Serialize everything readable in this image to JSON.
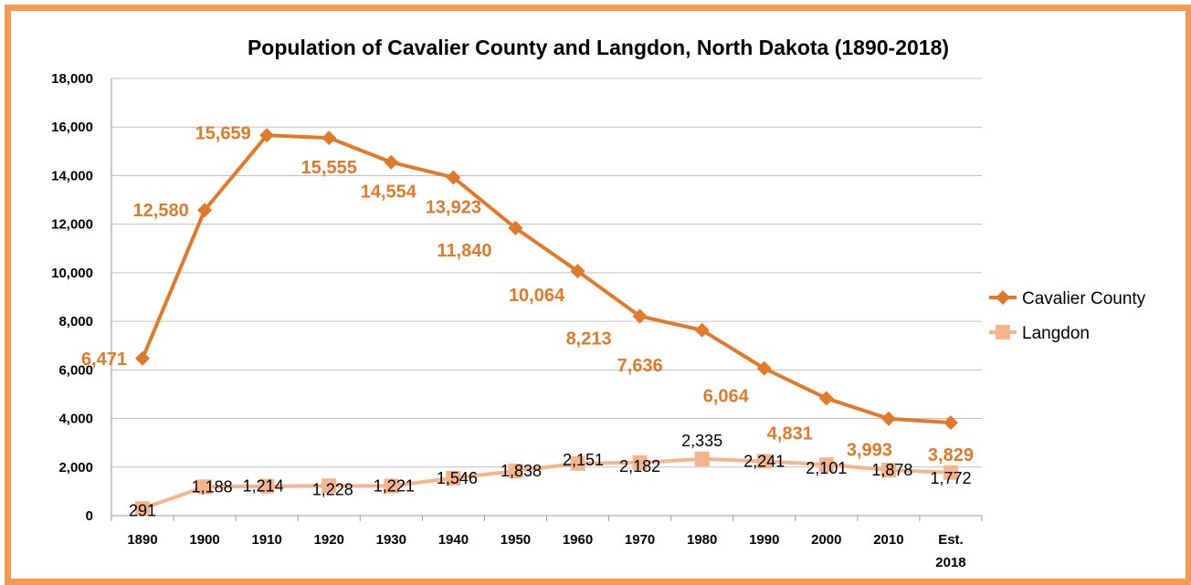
{
  "chart_data": {
    "type": "line",
    "title": "Population of Cavalier County and Langdon, North Dakota (1890-2018)",
    "xlabel": "",
    "ylabel": "",
    "categories": [
      "1890",
      "1900",
      "1910",
      "1920",
      "1930",
      "1940",
      "1950",
      "1960",
      "1970",
      "1980",
      "1990",
      "2000",
      "2010",
      "Est. 2018"
    ],
    "ylim": [
      0,
      18000
    ],
    "yticks": [
      0,
      2000,
      4000,
      6000,
      8000,
      10000,
      12000,
      14000,
      16000,
      18000
    ],
    "ytick_labels": [
      "0",
      "2,000",
      "4,000",
      "6,000",
      "8,000",
      "10,000",
      "12,000",
      "14,000",
      "16,000",
      "18,000"
    ],
    "grid": true,
    "legend_position": "right",
    "series": [
      {
        "name": "Cavalier County",
        "color": "#e07a2a",
        "marker": "diamond",
        "values": [
          6471,
          12580,
          15659,
          15555,
          14554,
          13923,
          11840,
          10064,
          8213,
          7636,
          6064,
          4831,
          3993,
          3829
        ],
        "labels": [
          "6,471",
          "12,580",
          "15,659",
          "15,555",
          "14,554",
          "13,923",
          "11,840",
          "10,064",
          "8,213",
          "7,636",
          "6,064",
          "4,831",
          "3,993",
          "3,829"
        ]
      },
      {
        "name": "Langdon",
        "color": "#f5b48e",
        "marker": "square",
        "values": [
          291,
          1188,
          1214,
          1228,
          1221,
          1546,
          1838,
          2151,
          2182,
          2335,
          2241,
          2101,
          1878,
          1772
        ],
        "labels": [
          "291",
          "1,188",
          "1,214",
          "1,228",
          "1,221",
          "1,546",
          "1,838",
          "2,151",
          "2,182",
          "2,335",
          "2,241",
          "2,101",
          "1,878",
          "1,772"
        ]
      }
    ]
  }
}
